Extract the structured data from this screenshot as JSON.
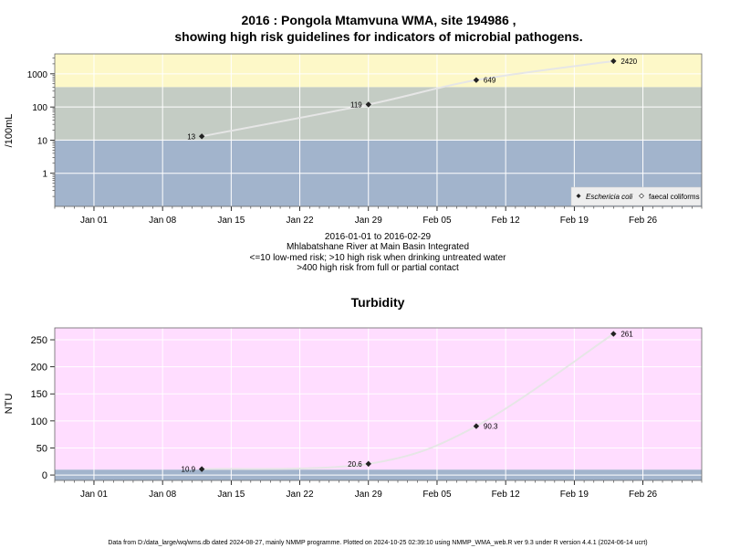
{
  "chart_data": [
    {
      "type": "line",
      "title": "2016 : Pongola Mtamvuna WMA, site 194986 ,",
      "subtitle": "showing high risk guidelines for indicators of microbial pathogens.",
      "ylabel": "/100mL",
      "y_scale": "log",
      "ylim": [
        0.1,
        4000
      ],
      "xlim": [
        "2015-12-28",
        "2016-03-03"
      ],
      "yticks": [
        "1",
        "10",
        "100",
        "1000"
      ],
      "ytick_values": [
        1,
        10,
        100,
        1000
      ],
      "xticks": [
        "Jan 01",
        "Jan 08",
        "Jan 15",
        "Jan 22",
        "Jan 29",
        "Feb 05",
        "Feb 12",
        "Feb 19",
        "Feb 26"
      ],
      "xtick_dates": [
        "2016-01-01",
        "2016-01-08",
        "2016-01-15",
        "2016-01-22",
        "2016-01-29",
        "2016-02-05",
        "2016-02-12",
        "2016-02-19",
        "2016-02-26"
      ],
      "bands": [
        {
          "from": 0.1,
          "to": 10,
          "color": "#a2b4cc"
        },
        {
          "from": 10,
          "to": 400,
          "color": "#c4ccc4"
        },
        {
          "from": 400,
          "to": 4000,
          "color": "#fdf8c8"
        }
      ],
      "series": [
        {
          "name": "Eschericia coli",
          "x": [
            "2016-01-12",
            "2016-01-29",
            "2016-02-09",
            "2016-02-23"
          ],
          "values": [
            13,
            119,
            649,
            2420
          ],
          "labels": [
            "13",
            "119",
            "649",
            "2420"
          ]
        },
        {
          "name": "faecal coliforms",
          "x": [],
          "values": []
        }
      ],
      "legend": "bottom-right",
      "grid": true,
      "caption": [
        "2016-01-01 to 2016-02-29",
        "Mhlabatshane River at Main Basin Integrated",
        "<=10 low-med risk; >10 high risk when drinking untreated water",
        ">400 high risk from full or partial contact"
      ]
    },
    {
      "type": "line",
      "title": "Turbidity",
      "ylabel": "NTU",
      "ylim": [
        -10,
        272
      ],
      "xlim": [
        "2015-12-28",
        "2016-03-03"
      ],
      "yticks": [
        "0",
        "50",
        "100",
        "150",
        "200",
        "250"
      ],
      "ytick_values": [
        0,
        50,
        100,
        150,
        200,
        250
      ],
      "xticks": [
        "Jan 01",
        "Jan 08",
        "Jan 15",
        "Jan 22",
        "Jan 29",
        "Feb 05",
        "Feb 12",
        "Feb 19",
        "Feb 26"
      ],
      "xtick_dates": [
        "2016-01-01",
        "2016-01-08",
        "2016-01-15",
        "2016-01-22",
        "2016-01-29",
        "2016-02-05",
        "2016-02-12",
        "2016-02-19",
        "2016-02-26"
      ],
      "bands": [
        {
          "from": -10,
          "to": 10,
          "color": "#a2b4cc"
        },
        {
          "from": 10,
          "to": 272,
          "color": "#ffddff"
        }
      ],
      "series": [
        {
          "name": "Turbidity",
          "x": [
            "2016-01-12",
            "2016-01-29",
            "2016-02-09",
            "2016-02-23"
          ],
          "values": [
            10.9,
            20.6,
            90.3,
            261
          ],
          "labels": [
            "10.9",
            "20.6",
            "90.3",
            "261"
          ]
        }
      ],
      "grid": true
    }
  ],
  "colors": {
    "line": "#e6e6e6",
    "point": "#222222",
    "grid": "#ffffff",
    "frame": "#666666"
  },
  "footer": "Data from D:/data_large/wq/wms.db dated 2024-08-27, mainly NMMP programme. Plotted on 2024-10-25 02:39:10 using NMMP_WMA_web.R ver 9.3 under R version 4.4.1 (2024-06-14 ucrt)"
}
